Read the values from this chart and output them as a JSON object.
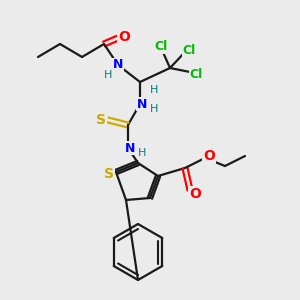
{
  "background_color": "#ebebeb",
  "bond_color": "#1a1a1a",
  "atom_colors": {
    "O": "#ff0000",
    "N": "#0000ff",
    "S_thio": "#ccaa00",
    "S_thph": "#ccaa00",
    "Cl": "#00bb00",
    "H": "#008080",
    "C": "#1a1a1a"
  },
  "figsize": [
    3.0,
    3.0
  ],
  "dpi": 100
}
